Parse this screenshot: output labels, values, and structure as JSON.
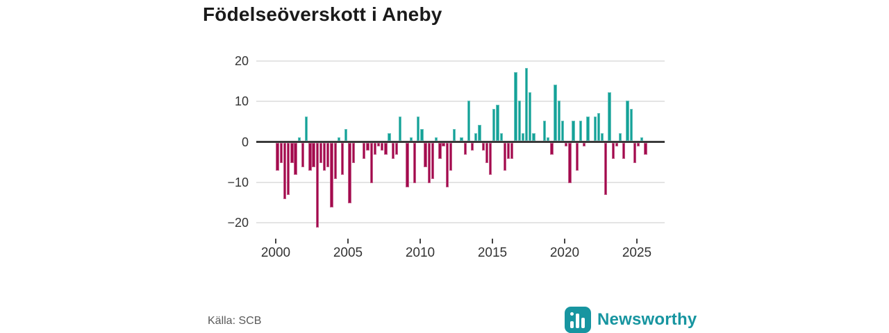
{
  "title": "Födelseöverskott i Aneby",
  "source": "Källa: SCB",
  "branding": {
    "name": "Newsworthy",
    "color": "#1795A0"
  },
  "colors": {
    "positive": "#14A298",
    "negative": "#A30A4D",
    "gridline": "#e4e4e4",
    "zero_line": "#3b3b3b"
  },
  "chart_data": {
    "type": "bar",
    "title": "Födelseöverskott i Aneby",
    "period": "quarterly",
    "start": "2000-Q1",
    "end": "2025-Q3",
    "x_tick_labels": [
      "2000",
      "2005",
      "2010",
      "2015",
      "2020",
      "2025"
    ],
    "x_tick_years": [
      2000,
      2005,
      2010,
      2015,
      2020,
      2025
    ],
    "y_tick_labels": [
      "20",
      "10",
      "0",
      "−10",
      "−20"
    ],
    "y_ticks": [
      20,
      10,
      0,
      -10,
      -20
    ],
    "ylim": [
      -22,
      21
    ],
    "grid": true,
    "legend": false,
    "values": [
      -7,
      -5,
      -14,
      -13,
      -5,
      -8,
      1,
      -6,
      6,
      -7,
      -6,
      -21,
      -5,
      -7,
      -6,
      -16,
      -9,
      1,
      -8,
      3,
      -15,
      -5,
      0,
      0,
      -4,
      -2,
      -10,
      -3,
      -1,
      -2,
      -3,
      2,
      -4,
      -3,
      6,
      0,
      -11,
      1,
      -10,
      6,
      3,
      -6,
      -10,
      -9,
      1,
      -4,
      -1,
      -11,
      -7,
      3,
      0,
      1,
      -3,
      10,
      -2,
      2,
      4,
      -2,
      -5,
      -8,
      8,
      9,
      2,
      -7,
      -4,
      -4,
      17,
      10,
      2,
      18,
      12,
      2,
      0,
      0,
      5,
      1,
      -3,
      14,
      10,
      5,
      -1,
      -10,
      5,
      -7,
      5,
      -1,
      6,
      0,
      6,
      7,
      2,
      -13,
      12,
      -4,
      -1,
      2,
      -4,
      10,
      8,
      -5,
      -1,
      1,
      -3
    ]
  }
}
